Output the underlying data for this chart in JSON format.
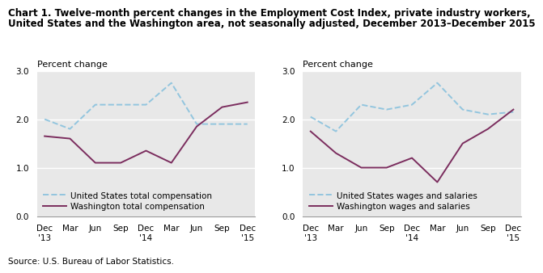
{
  "title_bold": "Chart 1.",
  "title_rest_line1": " Twelve-month percent changes in the Employment Cost Index, private industry workers,",
  "title_line2": "United States and the Washington area, not seasonally adjusted, December 2013–December 2015",
  "ylabel_text": "Percent change",
  "source": "Source: U.S. Bureau of Labor Statistics.",
  "x_labels": [
    "Dec\n'13",
    "Mar",
    "Jun",
    "Sep",
    "Dec\n'14",
    "Mar",
    "Jun",
    "Sep",
    "Dec\n'15"
  ],
  "left": {
    "us_total": [
      2.0,
      1.8,
      2.3,
      2.3,
      2.3,
      2.75,
      1.9,
      1.9,
      1.9
    ],
    "wash_total": [
      1.65,
      1.6,
      1.1,
      1.1,
      1.35,
      1.1,
      1.85,
      2.25,
      2.35
    ],
    "legend1": "United States total compensation",
    "legend2": "Washington total compensation"
  },
  "right": {
    "us_wages": [
      2.05,
      1.75,
      2.3,
      2.2,
      2.3,
      2.75,
      2.2,
      2.1,
      2.15
    ],
    "wash_wages": [
      1.75,
      1.3,
      1.0,
      1.0,
      1.2,
      0.7,
      1.5,
      1.8,
      2.2
    ],
    "legend1": "United States wages and salaries",
    "legend2": "Washington wages and salaries"
  },
  "ylim": [
    0,
    3.0
  ],
  "yticks": [
    0.0,
    1.0,
    2.0,
    3.0
  ],
  "ytick_labels": [
    "0.0",
    "1.0",
    "2.0",
    "3.0"
  ],
  "us_color": "#92C5DE",
  "wash_color": "#7B2D5E",
  "plot_bg": "#E8E8E8",
  "title_fontsize": 8.5,
  "tick_fontsize": 7.5,
  "legend_fontsize": 7.5,
  "ylabel_fontsize": 8.0,
  "source_fontsize": 7.5
}
